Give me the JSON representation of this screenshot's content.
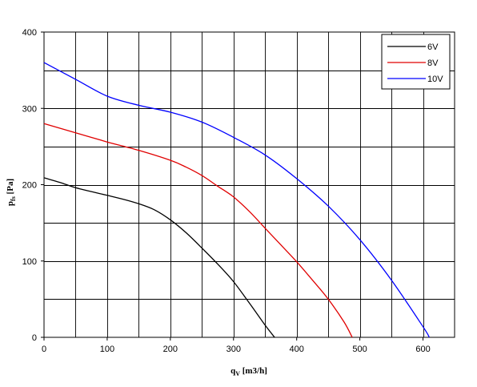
{
  "chart_data": {
    "type": "line",
    "xlabel": {
      "main": "q",
      "sub": "V",
      "unit": "[m3/h]"
    },
    "ylabel": {
      "main": "p",
      "sub": "fs",
      "unit": "[Pa]"
    },
    "xlim": [
      0,
      650
    ],
    "ylim": [
      0,
      400
    ],
    "xticks": [
      0,
      100,
      200,
      300,
      400,
      500,
      600
    ],
    "yticks": [
      0,
      100,
      200,
      300,
      400
    ],
    "grid": true,
    "grid_step_x": 50,
    "grid_step_y": 50,
    "legend_position": "top-right",
    "series": [
      {
        "name": "6V",
        "color": "#000000",
        "x": [
          0,
          25,
          50,
          75,
          100,
          125,
          150,
          175,
          200,
          225,
          250,
          275,
          300,
          325,
          350,
          365
        ],
        "y": [
          209,
          203,
          196,
          191,
          186,
          181,
          175,
          167,
          154,
          137,
          117,
          96,
          73,
          45,
          16,
          0
        ]
      },
      {
        "name": "8V",
        "color": "#e00000",
        "x": [
          0,
          50,
          100,
          150,
          200,
          225,
          250,
          275,
          300,
          325,
          350,
          375,
          400,
          425,
          450,
          475,
          488
        ],
        "y": [
          280,
          268,
          256,
          245,
          232,
          223,
          212,
          198,
          184,
          165,
          143,
          121,
          99,
          75,
          50,
          20,
          0
        ]
      },
      {
        "name": "10V",
        "color": "#0000ff",
        "x": [
          0,
          50,
          100,
          150,
          200,
          250,
          300,
          350,
          400,
          450,
          500,
          550,
          600,
          610
        ],
        "y": [
          360,
          338,
          316,
          304,
          295,
          282,
          262,
          239,
          208,
          172,
          128,
          75,
          14,
          0
        ]
      }
    ]
  }
}
